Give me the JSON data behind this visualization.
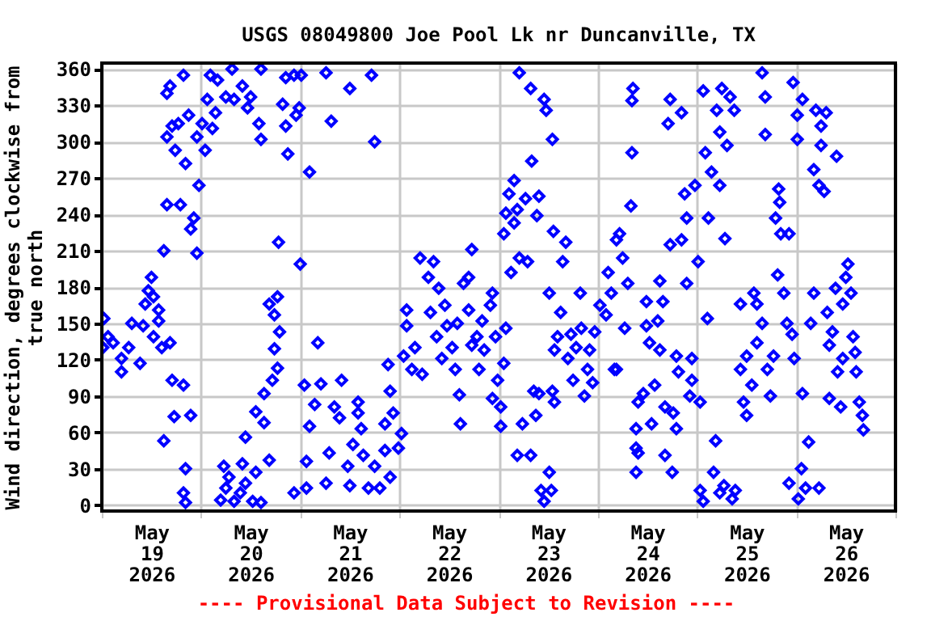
{
  "chart_data": {
    "type": "scatter",
    "title": "USGS 08049800 Joe Pool Lk nr Duncanville, TX",
    "ylabel": "Wind direction, degrees clockwise from\ntrue north",
    "annotations": [
      "---- Provisional Data Subject to Revision ----"
    ],
    "marker": "diamond",
    "grid": true,
    "xlim": [
      "2026-05-19T00:00",
      "2026-05-27T00:00"
    ],
    "xticks": [
      {
        "value": "2026-05-19T00:00",
        "label": null
      },
      {
        "value": "2026-05-19T12:00",
        "label": "May\n19\n2026"
      },
      {
        "value": "2026-05-20T00:00",
        "label": null
      },
      {
        "value": "2026-05-20T12:00",
        "label": "May\n20\n2026"
      },
      {
        "value": "2026-05-21T00:00",
        "label": null
      },
      {
        "value": "2026-05-21T12:00",
        "label": "May\n21\n2026"
      },
      {
        "value": "2026-05-22T00:00",
        "label": null
      },
      {
        "value": "2026-05-22T12:00",
        "label": "May\n22\n2026"
      },
      {
        "value": "2026-05-23T00:00",
        "label": null
      },
      {
        "value": "2026-05-23T12:00",
        "label": "May\n23\n2026"
      },
      {
        "value": "2026-05-24T00:00",
        "label": null
      },
      {
        "value": "2026-05-24T12:00",
        "label": "May\n24\n2026"
      },
      {
        "value": "2026-05-25T00:00",
        "label": null
      },
      {
        "value": "2026-05-25T12:00",
        "label": "May\n25\n2026"
      },
      {
        "value": "2026-05-26T00:00",
        "label": null
      },
      {
        "value": "2026-05-26T12:00",
        "label": "May\n26\n2026"
      },
      {
        "value": "2026-05-27T00:00",
        "label": null
      }
    ],
    "ylim": [
      -5,
      365
    ],
    "yticks": [
      0,
      30,
      60,
      90,
      120,
      150,
      180,
      210,
      240,
      270,
      300,
      330,
      360
    ],
    "series": [
      {
        "color": "#0000ff",
        "x": [
          "2026-05-19T00:30",
          "2026-05-19T01:30",
          "2026-05-19T00:15",
          "2026-05-19T02:45",
          "2026-05-19T04:45",
          "2026-05-19T04:45",
          "2026-05-19T06:30",
          "2026-05-19T07:15",
          "2026-05-19T09:15",
          "2026-05-19T10:00",
          "2026-05-19T10:30",
          "2026-05-19T11:15",
          "2026-05-19T12:00",
          "2026-05-19T12:30",
          "2026-05-19T13:45",
          "2026-05-19T13:45",
          "2026-05-19T14:30",
          "2026-05-19T12:30",
          "2026-05-19T16:30",
          "2026-05-19T15:00",
          "2026-05-19T15:45",
          "2026-05-19T15:45",
          "2026-05-19T16:30",
          "2026-05-19T15:45",
          "2026-05-19T17:00",
          "2026-05-19T17:45",
          "2026-05-19T18:30",
          "2026-05-19T19:00",
          "2026-05-19T19:45",
          "2026-05-19T20:15",
          "2026-05-19T21:00",
          "2026-05-19T21:30",
          "2026-05-19T22:15",
          "2026-05-19T23:00",
          "2026-05-19T23:00",
          "2026-05-19T23:30",
          "2026-05-20T00:15",
          "2026-05-20T01:00",
          "2026-05-20T01:30",
          "2026-05-20T02:15",
          "2026-05-20T02:45",
          "2026-05-20T03:30",
          "2026-05-20T04:00",
          "2026-05-20T06:00",
          "2026-05-20T07:30",
          "2026-05-20T08:00",
          "2026-05-20T10:00",
          "2026-05-20T11:15",
          "2026-05-20T12:00",
          "2026-05-20T14:00",
          "2026-05-20T14:30",
          "2026-05-20T14:30",
          "2026-05-19T15:00",
          "2026-05-19T17:30",
          "2026-05-19T17:00",
          "2026-05-19T19:45",
          "2026-05-19T20:15",
          "2026-05-19T19:45",
          "2026-05-19T20:15",
          "2026-05-19T21:30",
          "2026-05-20T05:30",
          "2026-05-20T06:00",
          "2026-05-20T04:45",
          "2026-05-20T06:45",
          "2026-05-20T08:00",
          "2026-05-20T09:30",
          "2026-05-20T10:00",
          "2026-05-20T10:45",
          "2026-05-20T12:30",
          "2026-05-20T13:15",
          "2026-05-20T14:30",
          "2026-05-20T10:45",
          "2026-05-20T13:15",
          "2026-05-20T15:15",
          "2026-05-20T16:30",
          "2026-05-20T15:15",
          "2026-05-20T17:15",
          "2026-05-20T18:30",
          "2026-05-20T17:45",
          "2026-05-20T19:00",
          "2026-05-20T17:45",
          "2026-05-20T16:30",
          "2026-05-20T18:30",
          "2026-05-20T18:45",
          "2026-05-20T19:45",
          "2026-05-20T20:30",
          "2026-05-20T21:00",
          "2026-05-20T20:30",
          "2026-05-20T22:30",
          "2026-05-20T23:00",
          "2026-05-21T00:15",
          "2026-05-20T23:45",
          "2026-05-21T00:00",
          "2026-05-21T01:00",
          "2026-05-21T01:30",
          "2026-05-21T01:30",
          "2026-05-20T22:30",
          "2026-05-21T02:15",
          "2026-05-21T02:15",
          "2026-05-21T03:30",
          "2026-05-21T04:15",
          "2026-05-21T05:00",
          "2026-05-21T06:15",
          "2026-05-21T07:00",
          "2026-05-21T06:15",
          "2026-05-21T07:30",
          "2026-05-21T08:15",
          "2026-05-21T09:30",
          "2026-05-21T10:00",
          "2026-05-21T11:30",
          "2026-05-21T12:00",
          "2026-05-21T12:00",
          "2026-05-21T12:45",
          "2026-05-21T14:00",
          "2026-05-21T14:45",
          "2026-05-21T17:15",
          "2026-05-21T18:00",
          "2026-05-21T14:00",
          "2026-05-21T15:15",
          "2026-05-21T16:30",
          "2026-05-21T19:15",
          "2026-05-21T18:00",
          "2026-05-21T20:30",
          "2026-05-21T21:45",
          "2026-05-21T23:45",
          "2026-05-21T20:30",
          "2026-05-21T22:30",
          "2026-05-22T00:30",
          "2026-05-21T21:45",
          "2026-05-21T21:15",
          "2026-05-22T01:00",
          "2026-05-22T01:45",
          "2026-05-22T01:45",
          "2026-05-22T03:00",
          "2026-05-22T03:45",
          "2026-05-22T05:00",
          "2026-05-22T05:30",
          "2026-05-22T07:00",
          "2026-05-22T07:30",
          "2026-05-22T08:15",
          "2026-05-22T09:00",
          "2026-05-22T09:30",
          "2026-05-22T10:15",
          "2026-05-22T11:00",
          "2026-05-22T11:30",
          "2026-05-22T12:45",
          "2026-05-22T13:30",
          "2026-05-22T14:00",
          "2026-05-22T14:30",
          "2026-05-22T14:45",
          "2026-05-22T15:30",
          "2026-05-22T16:45",
          "2026-05-22T17:30",
          "2026-05-22T16:45",
          "2026-05-22T17:30",
          "2026-05-22T18:45",
          "2026-05-22T19:15",
          "2026-05-22T20:00",
          "2026-05-22T20:30",
          "2026-05-22T22:00",
          "2026-05-22T22:30",
          "2026-05-22T23:15",
          "2026-05-22T23:45",
          "2026-05-22T22:30",
          "2026-05-23T00:30",
          "2026-05-23T01:15",
          "2026-05-23T00:30",
          "2026-05-23T01:45",
          "2026-05-23T01:15",
          "2026-05-23T01:45",
          "2026-05-23T02:30",
          "2026-05-23T03:00",
          "2026-05-23T03:45",
          "2026-05-23T03:45",
          "2026-05-23T04:30",
          "2026-05-23T05:00",
          "2026-05-23T04:30",
          "2026-05-23T05:00",
          "2026-05-23T05:45",
          "2026-05-23T06:30",
          "2026-05-23T07:00",
          "2026-05-23T07:45",
          "2026-05-23T07:45",
          "2026-05-23T08:00",
          "2026-05-23T08:30",
          "2026-05-23T09:00",
          "2026-05-23T09:15",
          "2026-05-23T09:45",
          "2026-05-23T09:45",
          "2026-05-23T10:15",
          "2026-05-23T11:00",
          "2026-05-23T11:00",
          "2026-05-23T11:30",
          "2026-05-23T12:15",
          "2026-05-23T12:15",
          "2026-05-23T13:00",
          "2026-05-23T12:45",
          "2026-05-23T13:00",
          "2026-05-23T13:15",
          "2026-05-23T13:30",
          "2026-05-23T13:30",
          "2026-05-23T14:15",
          "2026-05-23T15:00",
          "2026-05-23T15:30",
          "2026-05-23T16:15",
          "2026-05-23T16:45",
          "2026-05-23T17:30",
          "2026-05-23T18:00",
          "2026-05-23T18:45",
          "2026-05-23T19:45",
          "2026-05-23T20:00",
          "2026-05-23T20:45",
          "2026-05-23T21:30",
          "2026-05-23T22:00",
          "2026-05-23T22:45",
          "2026-05-23T23:15",
          "2026-05-24T00:30",
          "2026-05-24T02:00",
          "2026-05-24T02:30",
          "2026-05-24T03:15",
          "2026-05-24T04:00",
          "2026-05-24T04:30",
          "2026-05-24T05:15",
          "2026-05-24T06:00",
          "2026-05-24T07:15",
          "2026-05-24T04:30",
          "2026-05-24T06:30",
          "2026-05-24T08:00",
          "2026-05-24T08:15",
          "2026-05-24T08:30",
          "2026-05-24T08:15",
          "2026-05-24T09:15",
          "2026-05-24T09:15",
          "2026-05-24T09:15",
          "2026-05-24T09:45",
          "2026-05-24T09:45",
          "2026-05-24T11:00",
          "2026-05-24T11:45",
          "2026-05-24T11:45",
          "2026-05-24T12:30",
          "2026-05-24T13:00",
          "2026-05-24T13:45",
          "2026-05-24T14:30",
          "2026-05-24T15:00",
          "2026-05-24T15:00",
          "2026-05-24T15:45",
          "2026-05-24T16:15",
          "2026-05-24T16:15",
          "2026-05-24T17:00",
          "2026-05-24T17:30",
          "2026-05-24T17:30",
          "2026-05-24T18:00",
          "2026-05-24T18:15",
          "2026-05-24T19:00",
          "2026-05-24T19:00",
          "2026-05-24T19:30",
          "2026-05-24T20:15",
          "2026-05-24T20:15",
          "2026-05-24T21:00",
          "2026-05-24T21:30",
          "2026-05-24T21:30",
          "2026-05-24T22:15",
          "2026-05-24T22:45",
          "2026-05-24T22:45",
          "2026-05-24T23:30",
          "2026-05-25T00:15",
          "2026-05-25T00:45",
          "2026-05-25T00:45",
          "2026-05-25T01:30",
          "2026-05-25T01:30",
          "2026-05-25T02:00",
          "2026-05-25T02:30",
          "2026-05-25T02:45",
          "2026-05-25T03:30",
          "2026-05-25T04:00",
          "2026-05-25T04:30",
          "2026-05-25T04:45",
          "2026-05-25T05:30",
          "2026-05-25T05:30",
          "2026-05-25T05:30",
          "2026-05-25T06:00",
          "2026-05-25T06:30",
          "2026-05-25T06:45",
          "2026-05-25T07:15",
          "2026-05-25T08:00",
          "2026-05-25T08:30",
          "2026-05-25T09:00",
          "2026-05-25T09:15",
          "2026-05-25T10:30",
          "2026-05-25T10:30",
          "2026-05-25T11:15",
          "2026-05-25T12:00",
          "2026-05-25T12:00",
          "2026-05-25T13:15",
          "2026-05-25T13:45",
          "2026-05-25T14:30",
          "2026-05-25T14:30",
          "2026-05-25T15:45",
          "2026-05-25T15:45",
          "2026-05-25T16:30",
          "2026-05-25T16:30",
          "2026-05-25T17:00",
          "2026-05-25T17:45",
          "2026-05-25T18:30",
          "2026-05-25T19:00",
          "2026-05-25T19:30",
          "2026-05-25T19:45",
          "2026-05-25T20:00",
          "2026-05-25T20:15",
          "2026-05-25T21:00",
          "2026-05-25T21:45",
          "2026-05-25T22:15",
          "2026-05-25T22:15",
          "2026-05-25T23:00",
          "2026-05-25T23:15",
          "2026-05-25T23:30",
          "2026-05-26T00:15",
          "2026-05-26T00:15",
          "2026-05-26T00:30",
          "2026-05-26T01:15",
          "2026-05-26T01:30",
          "2026-05-26T01:30",
          "2026-05-26T02:15",
          "2026-05-26T03:00",
          "2026-05-26T03:30",
          "2026-05-26T04:15",
          "2026-05-26T04:15",
          "2026-05-26T04:45",
          "2026-05-26T05:30",
          "2026-05-26T05:30",
          "2026-05-26T06:00",
          "2026-05-26T06:00",
          "2026-05-26T06:45",
          "2026-05-26T07:15",
          "2026-05-26T07:30",
          "2026-05-26T08:00",
          "2026-05-26T08:00",
          "2026-05-26T08:45",
          "2026-05-26T09:30",
          "2026-05-26T09:45",
          "2026-05-26T10:00",
          "2026-05-26T10:45",
          "2026-05-26T11:15",
          "2026-05-26T11:15",
          "2026-05-26T12:00",
          "2026-05-26T12:30",
          "2026-05-26T13:15",
          "2026-05-26T13:45",
          "2026-05-26T14:15",
          "2026-05-26T14:30",
          "2026-05-26T15:15",
          "2026-05-26T16:00",
          "2026-05-26T16:15"
        ],
        "values": [
          154,
          139,
          130,
          134,
          121,
          110,
          130,
          150,
          117,
          148,
          166,
          177,
          188,
          172,
          161,
          152,
          130,
          139,
          134,
          210,
          248,
          304,
          346,
          340,
          313,
          293,
          315,
          248,
          355,
          282,
          322,
          228,
          237,
          208,
          304,
          264,
          315,
          293,
          335,
          355,
          311,
          324,
          351,
          337,
          360,
          335,
          346,
          328,
          337,
          315,
          360,
          302,
          53,
          73,
          103,
          99,
          30,
          10,
          2,
          74,
          32,
          14,
          4,
          23,
          3,
          10,
          34,
          18,
          3,
          27,
          2,
          56,
          77,
          68,
          37,
          92,
          103,
          113,
          129,
          143,
          157,
          166,
          172,
          217,
          331,
          313,
          290,
          353,
          355,
          322,
          355,
          328,
          199,
          99,
          36,
          14,
          10,
          275,
          65,
          83,
          134,
          100,
          18,
          43,
          357,
          317,
          81,
          72,
          103,
          32,
          16,
          344,
          50,
          85,
          63,
          355,
          300,
          76,
          41,
          14,
          14,
          32,
          45,
          23,
          47,
          67,
          76,
          59,
          94,
          116,
          123,
          148,
          161,
          112,
          130,
          204,
          108,
          188,
          159,
          201,
          139,
          179,
          121,
          165,
          148,
          130,
          112,
          150,
          91,
          67,
          183,
          188,
          211,
          161,
          132,
          139,
          112,
          152,
          128,
          165,
          175,
          139,
          103,
          88,
          65,
          117,
          81,
          146,
          224,
          241,
          257,
          192,
          268,
          233,
          244,
          357,
          41,
          204,
          67,
          253,
          201,
          344,
          41,
          284,
          94,
          74,
          239,
          255,
          92,
          12,
          335,
          3,
          326,
          175,
          27,
          302,
          12,
          94,
          226,
          128,
          85,
          139,
          159,
          201,
          217,
          121,
          141,
          103,
          130,
          175,
          146,
          90,
          112,
          128,
          101,
          143,
          165,
          157,
          192,
          175,
          112,
          219,
          224,
          204,
          183,
          112,
          146,
          247,
          291,
          344,
          334,
          47,
          27,
          63,
          85,
          43,
          92,
          168,
          148,
          134,
          67,
          99,
          152,
          185,
          128,
          168,
          41,
          81,
          315,
          215,
          335,
          27,
          76,
          123,
          63,
          110,
          324,
          219,
          257,
          183,
          237,
          90,
          121,
          103,
          264,
          201,
          85,
          12,
          342,
          3,
          291,
          154,
          237,
          275,
          27,
          53,
          326,
          308,
          10,
          264,
          344,
          16,
          220,
          297,
          337,
          5,
          326,
          12,
          166,
          112,
          85,
          123,
          74,
          99,
          175,
          134,
          166,
          357,
          150,
          337,
          306,
          112,
          90,
          123,
          237,
          190,
          261,
          250,
          224,
          175,
          150,
          224,
          18,
          141,
          349,
          121,
          322,
          302,
          5,
          30,
          92,
          335,
          14,
          52,
          150,
          277,
          175,
          326,
          14,
          264,
          313,
          297,
          259,
          324,
          159,
          132,
          88,
          143,
          179,
          288,
          110,
          81,
          121,
          166,
          188,
          199,
          175,
          139,
          126,
          110,
          85,
          74,
          62
        ]
      }
    ]
  }
}
